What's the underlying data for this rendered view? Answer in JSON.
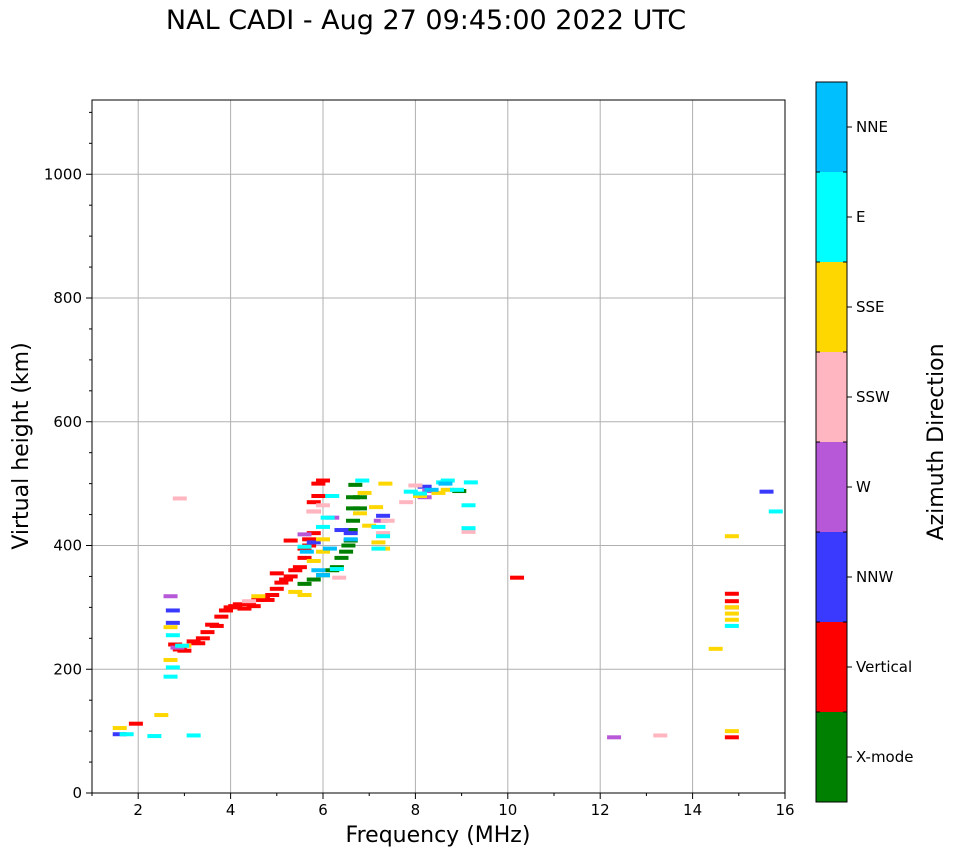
{
  "chart_data": {
    "type": "scatter",
    "title": "NAL CADI - Aug 27 09:45:00 2022 UTC",
    "xlabel": "Frequency (MHz)",
    "ylabel": "Virtual height (km)",
    "xlim": [
      1,
      16
    ],
    "ylim": [
      0,
      1120
    ],
    "xticks": [
      2,
      4,
      6,
      8,
      10,
      12,
      14,
      16
    ],
    "yticks": [
      0,
      200,
      400,
      600,
      800,
      1000
    ],
    "grid": true,
    "colorbar": {
      "label": "Azimuth Direction",
      "categories": [
        {
          "name": "X-mode",
          "color": "#008000"
        },
        {
          "name": "Vertical",
          "color": "#ff0000"
        },
        {
          "name": "NNW",
          "color": "#3a3aff"
        },
        {
          "name": "W",
          "color": "#b658d8"
        },
        {
          "name": "SSW",
          "color": "#ffb6c1"
        },
        {
          "name": "SSE",
          "color": "#ffd700"
        },
        {
          "name": "E",
          "color": "#00ffff"
        },
        {
          "name": "NNE",
          "color": "#00bfff"
        }
      ]
    },
    "series": [
      {
        "name": "Vertical",
        "points": [
          [
            1.95,
            112
          ],
          [
            2.8,
            240
          ],
          [
            2.9,
            232
          ],
          [
            3.0,
            230
          ],
          [
            3.2,
            245
          ],
          [
            3.3,
            242
          ],
          [
            3.4,
            250
          ],
          [
            3.5,
            260
          ],
          [
            3.6,
            272
          ],
          [
            3.7,
            270
          ],
          [
            3.8,
            285
          ],
          [
            3.9,
            295
          ],
          [
            4.0,
            300
          ],
          [
            4.1,
            302
          ],
          [
            4.2,
            305
          ],
          [
            4.3,
            298
          ],
          [
            4.4,
            308
          ],
          [
            4.5,
            302
          ],
          [
            4.6,
            312
          ],
          [
            4.7,
            315
          ],
          [
            4.8,
            312
          ],
          [
            4.9,
            320
          ],
          [
            5.0,
            330
          ],
          [
            5.0,
            355
          ],
          [
            5.1,
            340
          ],
          [
            5.2,
            345
          ],
          [
            5.3,
            350
          ],
          [
            5.3,
            408
          ],
          [
            5.4,
            360
          ],
          [
            5.5,
            365
          ],
          [
            5.6,
            380
          ],
          [
            5.6,
            395
          ],
          [
            5.7,
            400
          ],
          [
            5.7,
            410
          ],
          [
            5.8,
            420
          ],
          [
            5.8,
            455
          ],
          [
            5.8,
            470
          ],
          [
            5.9,
            480
          ],
          [
            5.9,
            500
          ],
          [
            6.0,
            505
          ],
          [
            10.2,
            348
          ],
          [
            14.85,
            90
          ],
          [
            14.85,
            300
          ],
          [
            14.85,
            310
          ],
          [
            14.85,
            322
          ]
        ]
      },
      {
        "name": "X-mode",
        "points": [
          [
            5.6,
            338
          ],
          [
            5.8,
            345
          ],
          [
            6.0,
            352
          ],
          [
            6.2,
            360
          ],
          [
            6.3,
            365
          ],
          [
            6.4,
            380
          ],
          [
            6.5,
            390
          ],
          [
            6.55,
            400
          ],
          [
            6.6,
            408
          ],
          [
            6.6,
            425
          ],
          [
            6.65,
            440
          ],
          [
            6.65,
            460
          ],
          [
            6.65,
            478
          ],
          [
            6.7,
            498
          ],
          [
            6.8,
            460
          ],
          [
            6.8,
            478
          ],
          [
            8.95,
            488
          ]
        ]
      },
      {
        "name": "NNW",
        "points": [
          [
            1.6,
            95
          ],
          [
            2.75,
            275
          ],
          [
            2.75,
            295
          ],
          [
            5.8,
            405
          ],
          [
            6.4,
            425
          ],
          [
            6.6,
            420
          ],
          [
            7.3,
            448
          ],
          [
            8.2,
            495
          ],
          [
            15.6,
            487
          ]
        ]
      },
      {
        "name": "W",
        "points": [
          [
            2.7,
            318
          ],
          [
            2.85,
            235
          ],
          [
            5.6,
            418
          ],
          [
            6.2,
            445
          ],
          [
            7.25,
            440
          ],
          [
            8.2,
            478
          ],
          [
            8.3,
            488
          ],
          [
            12.3,
            90
          ]
        ]
      },
      {
        "name": "SSW",
        "points": [
          [
            2.9,
            476
          ],
          [
            4.4,
            310
          ],
          [
            5.8,
            455
          ],
          [
            6.0,
            465
          ],
          [
            6.35,
            348
          ],
          [
            7.3,
            420
          ],
          [
            7.4,
            440
          ],
          [
            7.8,
            470
          ],
          [
            8.0,
            497
          ],
          [
            9.15,
            422
          ],
          [
            13.3,
            93
          ]
        ]
      },
      {
        "name": "SSE",
        "points": [
          [
            1.6,
            105
          ],
          [
            2.5,
            126
          ],
          [
            2.7,
            215
          ],
          [
            2.7,
            268
          ],
          [
            3.0,
            238
          ],
          [
            4.6,
            318
          ],
          [
            5.4,
            325
          ],
          [
            5.6,
            320
          ],
          [
            5.8,
            375
          ],
          [
            6.0,
            410
          ],
          [
            6.0,
            390
          ],
          [
            6.8,
            452
          ],
          [
            6.9,
            485
          ],
          [
            7.0,
            432
          ],
          [
            7.15,
            462
          ],
          [
            7.2,
            405
          ],
          [
            7.3,
            395
          ],
          [
            7.35,
            500
          ],
          [
            8.1,
            480
          ],
          [
            8.5,
            485
          ],
          [
            8.7,
            490
          ],
          [
            14.5,
            233
          ],
          [
            14.85,
            100
          ],
          [
            14.85,
            280
          ],
          [
            14.85,
            290
          ],
          [
            14.85,
            300
          ],
          [
            14.85,
            415
          ]
        ]
      },
      {
        "name": "E",
        "points": [
          [
            1.75,
            95
          ],
          [
            2.35,
            92
          ],
          [
            2.7,
            188
          ],
          [
            2.75,
            203
          ],
          [
            2.75,
            255
          ],
          [
            2.95,
            238
          ],
          [
            3.2,
            93
          ],
          [
            5.6,
            398
          ],
          [
            6.0,
            430
          ],
          [
            6.1,
            445
          ],
          [
            6.2,
            480
          ],
          [
            6.3,
            362
          ],
          [
            6.85,
            505
          ],
          [
            7.2,
            395
          ],
          [
            7.2,
            430
          ],
          [
            7.3,
            415
          ],
          [
            7.9,
            487
          ],
          [
            8.1,
            484
          ],
          [
            8.6,
            502
          ],
          [
            8.7,
            505
          ],
          [
            8.9,
            490
          ],
          [
            9.15,
            465
          ],
          [
            9.15,
            428
          ],
          [
            9.2,
            502
          ],
          [
            14.85,
            270
          ],
          [
            15.8,
            455
          ]
        ]
      },
      {
        "name": "NNE",
        "points": [
          [
            5.65,
            390
          ],
          [
            5.9,
            360
          ],
          [
            6.0,
            352
          ],
          [
            6.15,
            395
          ],
          [
            6.6,
            410
          ],
          [
            8.35,
            490
          ],
          [
            8.65,
            500
          ]
        ]
      }
    ]
  }
}
